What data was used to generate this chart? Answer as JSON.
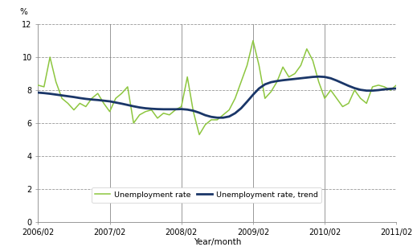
{
  "title": "",
  "ylabel": "%",
  "xlabel": "Year/month",
  "ylim": [
    0,
    12
  ],
  "yticks": [
    0,
    2,
    4,
    6,
    8,
    10,
    12
  ],
  "unemployment_rate": [
    8.3,
    8.2,
    10.0,
    8.5,
    7.5,
    7.2,
    6.8,
    7.2,
    7.0,
    7.5,
    7.8,
    7.2,
    6.7,
    7.5,
    7.8,
    8.2,
    6.0,
    6.5,
    6.7,
    6.8,
    6.3,
    6.6,
    6.5,
    6.8,
    7.0,
    8.8,
    6.7,
    5.3,
    5.9,
    6.2,
    6.2,
    6.5,
    6.8,
    7.5,
    8.5,
    9.5,
    11.0,
    9.5,
    7.5,
    7.9,
    8.5,
    9.4,
    8.8,
    9.0,
    9.5,
    10.5,
    9.8,
    8.5,
    7.5,
    8.0,
    7.5,
    7.0,
    7.2,
    8.0,
    7.5,
    7.2,
    8.2,
    8.3,
    8.2,
    8.0,
    8.3
  ],
  "unemployment_trend": [
    7.85,
    7.82,
    7.78,
    7.73,
    7.68,
    7.63,
    7.58,
    7.52,
    7.47,
    7.43,
    7.4,
    7.36,
    7.32,
    7.25,
    7.18,
    7.1,
    7.02,
    6.95,
    6.9,
    6.87,
    6.85,
    6.84,
    6.84,
    6.84,
    6.85,
    6.82,
    6.75,
    6.63,
    6.48,
    6.38,
    6.33,
    6.33,
    6.4,
    6.6,
    6.9,
    7.3,
    7.72,
    8.1,
    8.35,
    8.48,
    8.55,
    8.6,
    8.64,
    8.68,
    8.72,
    8.76,
    8.8,
    8.82,
    8.8,
    8.72,
    8.58,
    8.42,
    8.26,
    8.12,
    8.02,
    7.97,
    7.97,
    8.0,
    8.05,
    8.08,
    8.1
  ],
  "rate_color": "#8dc63f",
  "trend_color": "#1a3668",
  "xtick_labels": [
    "2006/02",
    "2007/02",
    "2008/02",
    "2009/02",
    "2010/02",
    "2011/02"
  ],
  "xtick_positions": [
    0,
    12,
    24,
    36,
    48,
    60
  ],
  "vline_positions": [
    12,
    24,
    36,
    48
  ],
  "background_color": "#ffffff",
  "grid_color": "#999999",
  "n_points": 61
}
